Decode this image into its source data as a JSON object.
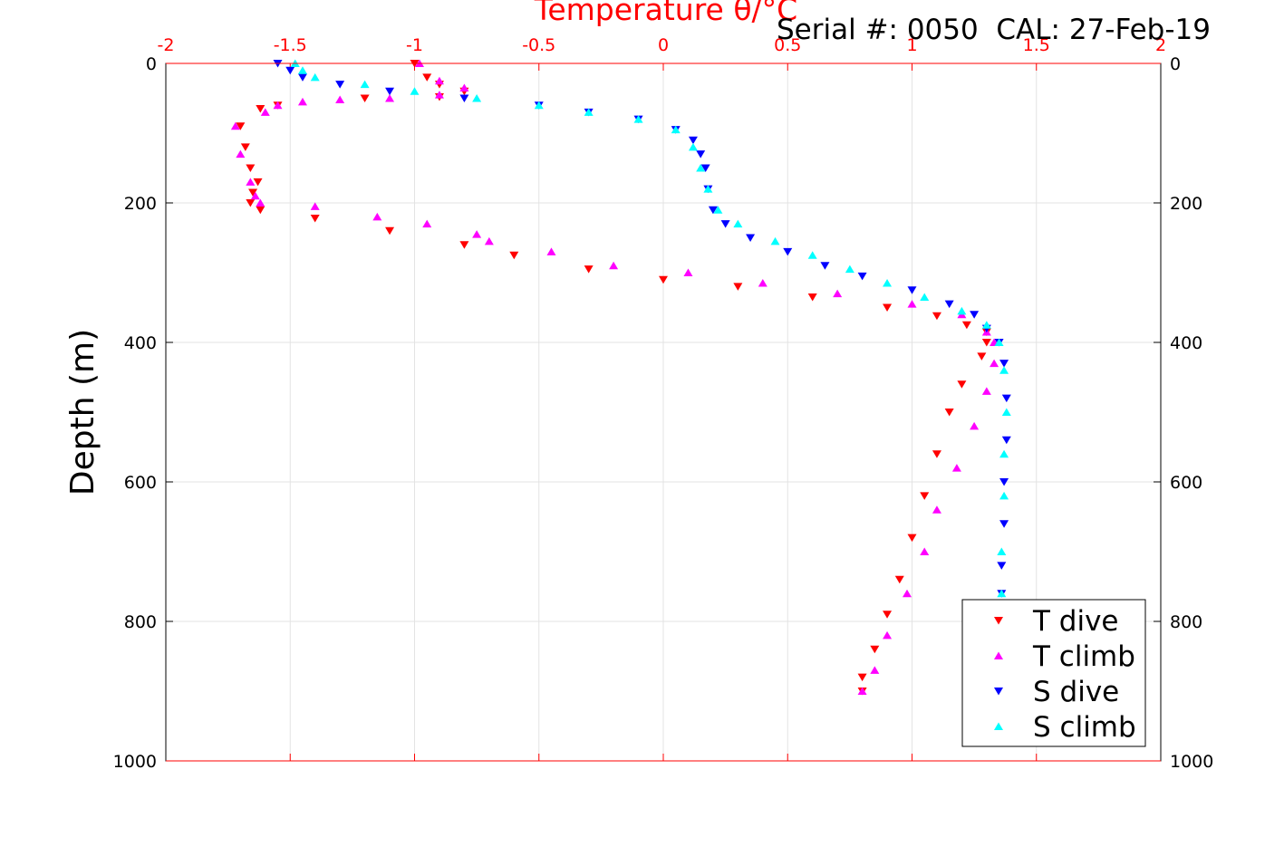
{
  "chart_data": {
    "type": "scatter",
    "title": "Temperature θ/°C",
    "annotation": "Serial #: 0050  CAL: 27-Feb-19",
    "xlabel": "Temperature θ/°C",
    "ylabel": "Depth (m)",
    "xlim": [
      -2,
      2
    ],
    "ylim": [
      0,
      1000
    ],
    "y_reversed": true,
    "grid": true,
    "legend_position": "bottom-right",
    "x_ticks": [
      "-2",
      "-1.5",
      "-1",
      "-0.5",
      "0",
      "0.5",
      "1",
      "1.5",
      "2"
    ],
    "y_ticks": [
      "0",
      "200",
      "400",
      "600",
      "800",
      "1000"
    ],
    "series": [
      {
        "name": "T dive",
        "color": "#ff0000",
        "marker": "triangle-down",
        "x": [
          -1.0,
          -0.95,
          -0.9,
          -0.8,
          -0.9,
          -1.2,
          -1.55,
          -1.62,
          -1.7,
          -1.68,
          -1.66,
          -1.63,
          -1.65,
          -1.66,
          -1.62,
          -1.4,
          -1.1,
          -0.8,
          -0.6,
          -0.3,
          0.0,
          0.3,
          0.6,
          0.9,
          1.1,
          1.22,
          1.3,
          1.3,
          1.28,
          1.2,
          1.15,
          1.1,
          1.05,
          1.0,
          0.95,
          0.9,
          0.85,
          0.8,
          0.8
        ],
        "y": [
          0,
          20,
          30,
          40,
          48,
          50,
          60,
          65,
          90,
          120,
          150,
          170,
          185,
          200,
          210,
          222,
          240,
          260,
          275,
          295,
          310,
          320,
          335,
          350,
          362,
          375,
          385,
          400,
          420,
          460,
          500,
          560,
          620,
          680,
          740,
          790,
          840,
          880,
          900
        ]
      },
      {
        "name": "T climb",
        "color": "#ff00ff",
        "marker": "triangle-up",
        "x": [
          -0.98,
          -0.9,
          -0.8,
          -0.9,
          -1.1,
          -1.3,
          -1.45,
          -1.55,
          -1.6,
          -1.72,
          -1.7,
          -1.66,
          -1.64,
          -1.62,
          -1.4,
          -1.15,
          -0.95,
          -0.75,
          -0.7,
          -0.45,
          -0.2,
          0.1,
          0.4,
          0.7,
          1.0,
          1.2,
          1.3,
          1.33,
          1.33,
          1.3,
          1.25,
          1.18,
          1.1,
          1.05,
          0.98,
          0.9,
          0.85,
          0.8
        ],
        "y": [
          0,
          25,
          35,
          45,
          50,
          52,
          55,
          60,
          70,
          90,
          130,
          170,
          190,
          200,
          205,
          220,
          230,
          245,
          255,
          270,
          290,
          300,
          315,
          330,
          345,
          360,
          385,
          400,
          430,
          470,
          520,
          580,
          640,
          700,
          760,
          820,
          870,
          900
        ]
      },
      {
        "name": "S dive",
        "color": "#0000ff",
        "marker": "triangle-down",
        "x": [
          -1.55,
          -1.5,
          -1.45,
          -1.3,
          -1.1,
          -0.8,
          -0.5,
          -0.3,
          -0.1,
          0.05,
          0.12,
          0.15,
          0.17,
          0.18,
          0.2,
          0.25,
          0.35,
          0.5,
          0.65,
          0.8,
          1.0,
          1.15,
          1.25,
          1.3,
          1.35,
          1.37,
          1.38,
          1.38,
          1.37,
          1.37,
          1.36,
          1.36
        ],
        "y": [
          0,
          10,
          20,
          30,
          40,
          50,
          60,
          70,
          80,
          95,
          110,
          130,
          150,
          180,
          210,
          230,
          250,
          270,
          290,
          305,
          325,
          345,
          360,
          380,
          400,
          430,
          480,
          540,
          600,
          660,
          720,
          760
        ]
      },
      {
        "name": "S climb",
        "color": "#00ffff",
        "marker": "triangle-up",
        "x": [
          -1.48,
          -1.45,
          -1.4,
          -1.2,
          -1.0,
          -0.75,
          -0.5,
          -0.3,
          -0.1,
          0.05,
          0.12,
          0.15,
          0.18,
          0.22,
          0.3,
          0.45,
          0.6,
          0.75,
          0.9,
          1.05,
          1.2,
          1.3,
          1.35,
          1.37,
          1.38,
          1.37,
          1.37,
          1.36,
          1.36
        ],
        "y": [
          0,
          10,
          20,
          30,
          40,
          50,
          60,
          70,
          80,
          95,
          120,
          150,
          180,
          210,
          230,
          255,
          275,
          295,
          315,
          335,
          355,
          375,
          400,
          440,
          500,
          560,
          620,
          700,
          760
        ]
      }
    ]
  }
}
